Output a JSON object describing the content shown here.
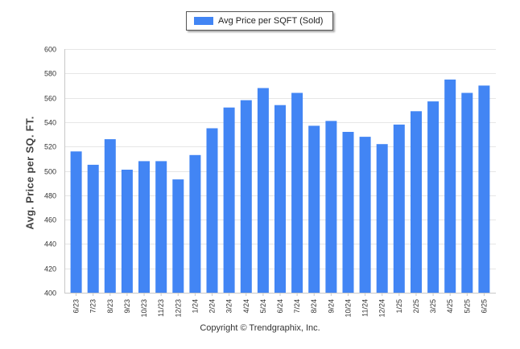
{
  "chart_data": {
    "type": "bar",
    "ylabel": "Avg. Price per SQ. FT.",
    "xlabel": "",
    "ylim": [
      400,
      600
    ],
    "y_ticks": [
      400,
      420,
      440,
      460,
      480,
      500,
      520,
      540,
      560,
      580,
      600
    ],
    "grid": true,
    "legend_position": "top-center",
    "categories": [
      "6/23",
      "7/23",
      "8/23",
      "9/23",
      "10/23",
      "11/23",
      "12/23",
      "1/24",
      "2/24",
      "3/24",
      "4/24",
      "5/24",
      "6/24",
      "7/24",
      "8/24",
      "9/24",
      "10/24",
      "11/24",
      "12/24",
      "1/25",
      "2/25",
      "3/25",
      "4/25",
      "5/25",
      "6/25"
    ],
    "series": [
      {
        "name": "Avg Price per SQFT (Sold)",
        "color": "#4285f4",
        "values": [
          516,
          505,
          526,
          501,
          508,
          508,
          493,
          513,
          535,
          552,
          558,
          568,
          554,
          564,
          537,
          541,
          532,
          528,
          522,
          538,
          549,
          557,
          575,
          564,
          570
        ]
      }
    ]
  },
  "legend": {
    "label": "Avg Price per SQFT (Sold)",
    "color": "#4285f4"
  },
  "copyright": "Copyright © Trendgraphix, Inc."
}
